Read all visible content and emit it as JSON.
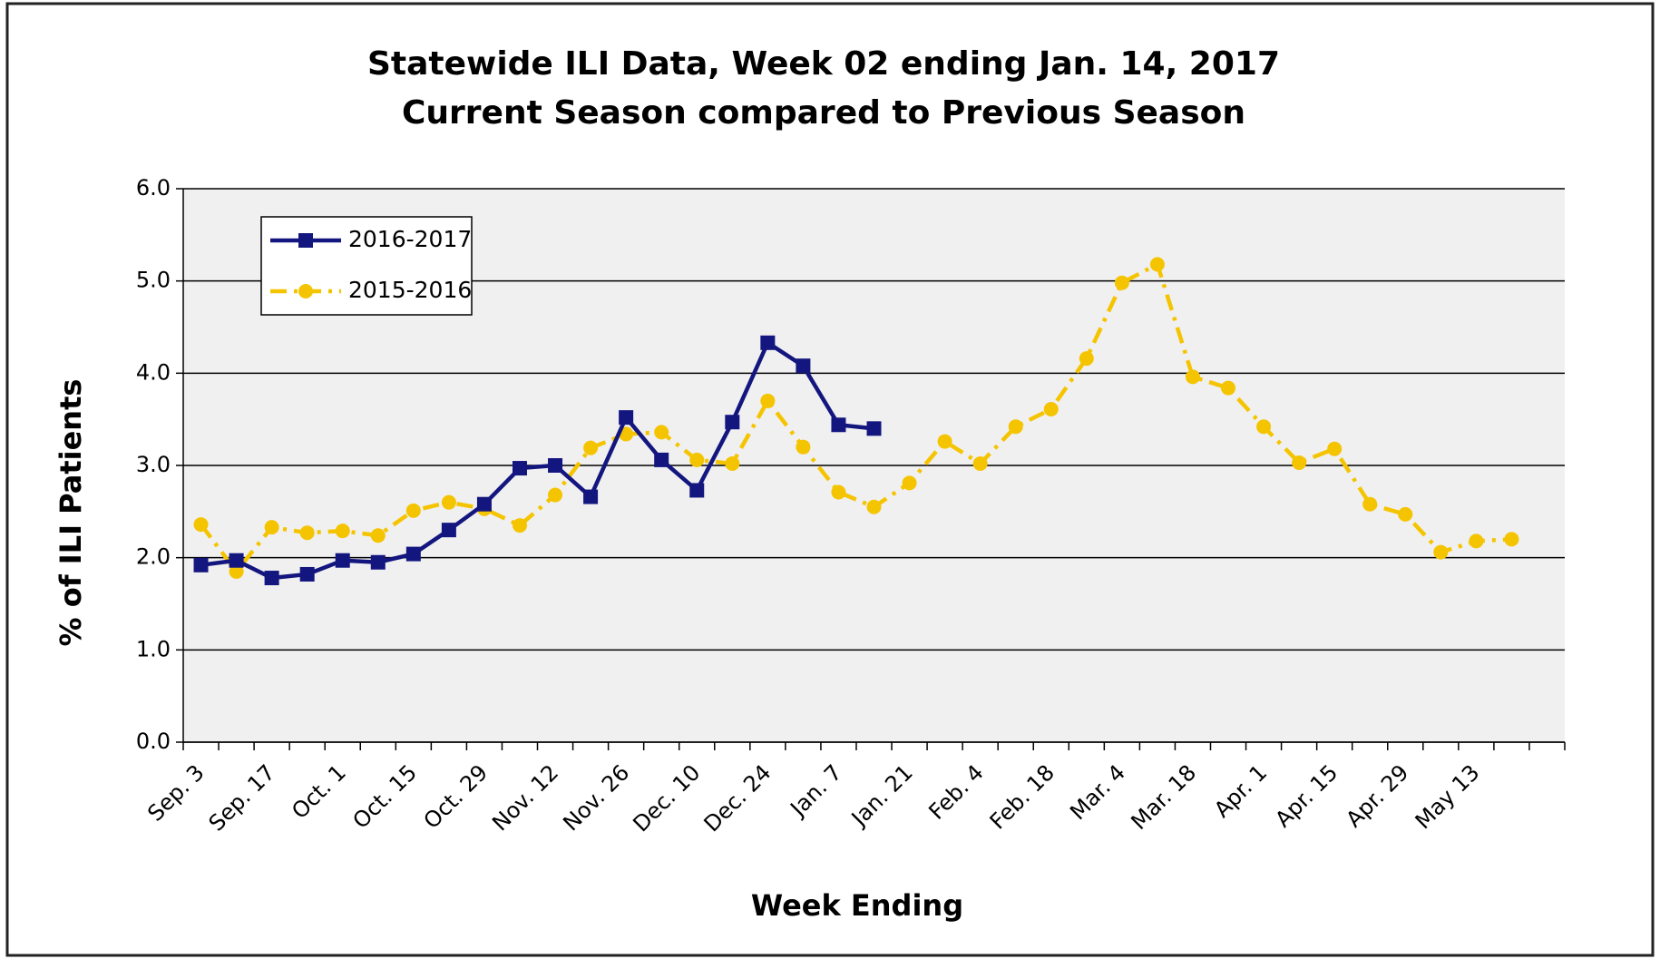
{
  "chart_data": {
    "type": "line",
    "title": "Statewide ILI Data, Week 02 ending Jan. 14, 2017",
    "subtitle": "Current Season compared to Previous Season",
    "x_label": "Week Ending",
    "y_label": "% of ILI Patients",
    "categories": [
      "Sep. 3",
      null,
      "Sep. 17",
      null,
      "Oct. 1",
      null,
      "Oct. 15",
      null,
      "Oct. 29",
      null,
      "Nov. 12",
      null,
      "Nov. 26",
      null,
      "Dec. 10",
      null,
      "Dec. 24",
      null,
      "Jan. 7",
      null,
      "Jan. 21",
      null,
      "Feb. 4",
      null,
      "Feb. 18",
      null,
      "Mar. 4",
      null,
      "Mar. 18",
      null,
      "Apr. 1",
      null,
      "Apr. 15",
      null,
      "Apr. 29",
      null,
      "May 13",
      null,
      null
    ],
    "series": [
      {
        "name": "2016-2017",
        "color": "#14167f",
        "marker": "square",
        "dash": "solid",
        "values": [
          1.92,
          1.97,
          1.78,
          1.82,
          1.97,
          1.95,
          2.04,
          2.3,
          2.58,
          2.97,
          3.0,
          2.66,
          3.52,
          3.06,
          2.73,
          3.47,
          4.33,
          4.08,
          3.44,
          3.4,
          null,
          null,
          null,
          null,
          null,
          null,
          null,
          null,
          null,
          null,
          null,
          null,
          null,
          null,
          null,
          null,
          null,
          null,
          null
        ]
      },
      {
        "name": "2015-2016",
        "color": "#f5c400",
        "marker": "circle",
        "dash": "dash-dot",
        "values": [
          2.36,
          1.85,
          2.33,
          2.27,
          2.29,
          2.24,
          2.51,
          2.6,
          2.53,
          2.35,
          2.68,
          3.19,
          3.34,
          3.36,
          3.06,
          3.02,
          3.7,
          3.2,
          2.71,
          2.55,
          2.81,
          3.26,
          3.02,
          3.42,
          3.61,
          4.16,
          4.98,
          5.18,
          3.96,
          3.84,
          3.42,
          3.03,
          3.18,
          2.58,
          2.47,
          2.06,
          2.18,
          2.2,
          null
        ]
      }
    ],
    "ylim": [
      0,
      6
    ],
    "yticks": [
      {
        "value": 0,
        "label": "0.0"
      },
      {
        "value": 1,
        "label": "1.0"
      },
      {
        "value": 2,
        "label": "2.0"
      },
      {
        "value": 3,
        "label": "3.0"
      },
      {
        "value": 4,
        "label": "4.0"
      },
      {
        "value": 5,
        "label": "5.0"
      },
      {
        "value": 6,
        "label": "6.0"
      }
    ],
    "grid": true,
    "legend": "upper left"
  }
}
